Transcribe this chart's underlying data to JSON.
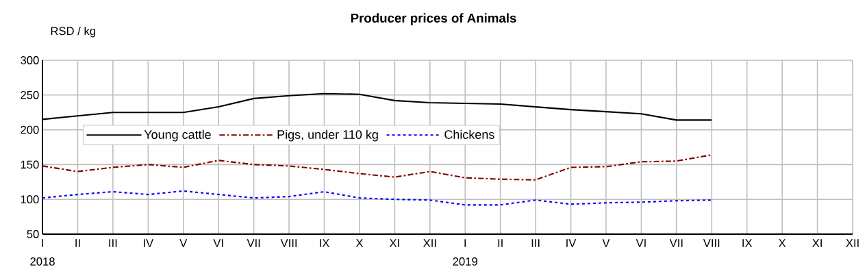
{
  "chart_data": {
    "type": "line",
    "title": "Producer prices of Animals",
    "ylabel": "RSD / kg",
    "categories": [
      "I",
      "II",
      "III",
      "IV",
      "V",
      "VI",
      "VII",
      "VIII",
      "IX",
      "X",
      "XI",
      "XII",
      "I",
      "II",
      "III",
      "IV",
      "V",
      "VI",
      "VII",
      "VIII",
      "IX",
      "X",
      "XI",
      "XII"
    ],
    "series": [
      {
        "name": "Young cattle",
        "color": "#000000",
        "line_style": "solid",
        "values": [
          215,
          220,
          225,
          225,
          225,
          233,
          245,
          249,
          252,
          251,
          242,
          239,
          238,
          237,
          233,
          229,
          226,
          223,
          214,
          214,
          null,
          null,
          null,
          null
        ]
      },
      {
        "name": "Pigs, under 110 kg",
        "color": "#800000",
        "line_style": "dashdot",
        "values": [
          148,
          140,
          146,
          150,
          146,
          156,
          150,
          148,
          143,
          137,
          132,
          140,
          131,
          129,
          128,
          146,
          147,
          154,
          155,
          164,
          null,
          null,
          null,
          null
        ]
      },
      {
        "name": "Chickens",
        "color": "#0000ff",
        "line_style": "dotted",
        "values": [
          102,
          107,
          111,
          107,
          112,
          107,
          102,
          104,
          111,
          102,
          100,
          99,
          92,
          92,
          99,
          93,
          95,
          96,
          98,
          99,
          null,
          null,
          null,
          null
        ]
      }
    ],
    "ylim": [
      50,
      300
    ],
    "yticks": [
      50,
      100,
      150,
      200,
      250,
      300
    ],
    "grid": true,
    "legend": "left",
    "marker": "none",
    "annotations": [
      "2018",
      "2019"
    ]
  }
}
